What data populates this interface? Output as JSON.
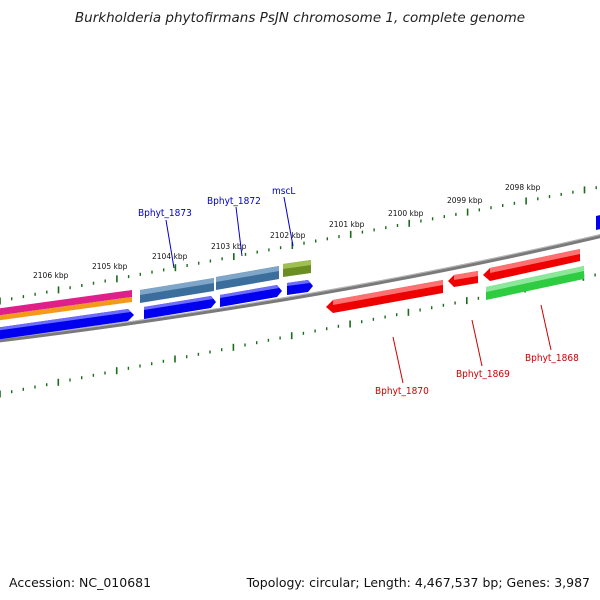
{
  "title": "Burkholderia phytofirmans PsJN chromosome 1, complete genome",
  "footer": {
    "accession": "Accession: NC_010681",
    "summary": "Topology: circular; Length: 4,467,537 bp; Genes: 3,987"
  },
  "colors": {
    "forward_cds": "#0000ee",
    "reverse_cds": "#ee0000",
    "rna": "#2ecc40",
    "gene_steel": "#3b6e9c",
    "gene_olive": "#6b8e23",
    "backbone": "#808080",
    "tick": "#1a6b1a",
    "label_blue": "#0000cc",
    "label_red": "#cc0000"
  },
  "ruler": {
    "kbp_labels": [
      "2106 kbp",
      "2105 kbp",
      "2104 kbp",
      "2103 kbp",
      "2102 kbp",
      "2101 kbp",
      "2100 kbp",
      "2099 kbp",
      "2098 kbp"
    ]
  },
  "genes": [
    {
      "name": "Bphyt_1873",
      "color": "label_blue"
    },
    {
      "name": "Bphyt_1872",
      "color": "label_blue"
    },
    {
      "name": "mscL",
      "color": "label_blue"
    },
    {
      "name": "Bphyt_1870",
      "color": "label_red"
    },
    {
      "name": "Bphyt_1869",
      "color": "label_red"
    },
    {
      "name": "Bphyt_1868",
      "color": "label_red"
    }
  ]
}
